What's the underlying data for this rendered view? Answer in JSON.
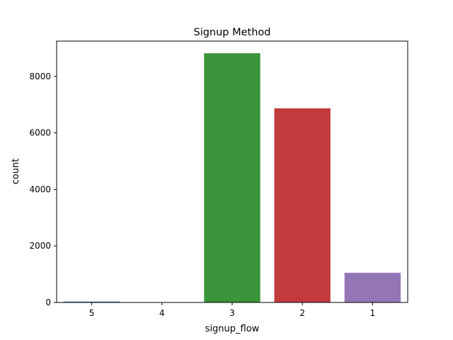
{
  "chart_data": {
    "type": "bar",
    "title": "Signup Method",
    "xlabel": "signup_flow",
    "ylabel": "count",
    "categories": [
      "5",
      "4",
      "3",
      "2",
      "1"
    ],
    "values": [
      30,
      5,
      8820,
      6870,
      1050
    ],
    "colors": [
      "#1f77b4",
      "#ff7f0e",
      "#3a9439",
      "#c23b3c",
      "#9475b6"
    ],
    "ylim": [
      0,
      9250
    ],
    "yticks": [
      0,
      2000,
      4000,
      6000,
      8000
    ],
    "grid": false,
    "legend": "none"
  }
}
